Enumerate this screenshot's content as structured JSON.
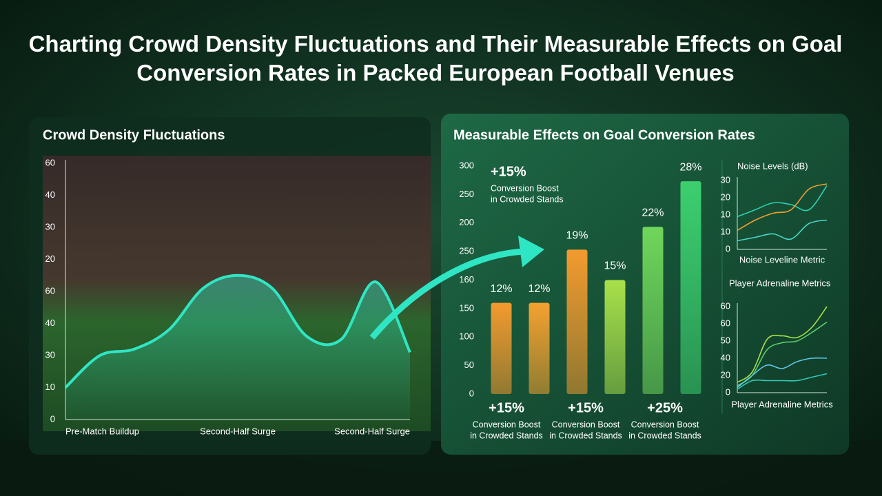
{
  "title": "Charting Crowd Density Fluctuations and Their Measurable Effects on Goal Conversion Rates in Packed European Football Venues",
  "chart_data": [
    {
      "type": "line",
      "title": "Crowd Density Fluctuations",
      "categories": [
        "Pre-Match Buildup",
        null,
        null,
        null,
        null,
        "Second-Half Surge",
        null,
        null,
        null,
        null,
        "Second-Half Surge"
      ],
      "y_labels": [
        "60",
        "40",
        "30",
        "20",
        "60",
        "40",
        "30",
        "10",
        "0"
      ],
      "ylim": [
        0,
        80
      ],
      "series": [
        {
          "color": "#2fe6c4",
          "values": [
            10,
            20,
            22,
            28,
            41,
            45,
            41,
            26,
            25,
            43,
            21
          ]
        }
      ]
    },
    {
      "type": "bar",
      "title": "Measurable Effects on Goal Conversion Rates",
      "y_labels": [
        "300",
        "250",
        "200",
        "250",
        "160",
        "150",
        "100",
        "50",
        "0"
      ],
      "ylim": [
        0,
        30
      ],
      "values": [
        12,
        12,
        19,
        15,
        22,
        28
      ],
      "value_labels": [
        "12%",
        "12%",
        "19%",
        "15%",
        "22%",
        "28%"
      ],
      "colors": [
        "#f39a2e",
        "#f4a12f",
        "#f39a2e",
        "#a8e04a",
        "#6fd65a",
        "#3ccf6e"
      ],
      "annotations": [
        {
          "value": "+15%",
          "text": [
            "Conversion Boost",
            "in Crowded Stands"
          ]
        },
        {
          "value": "+15%",
          "text": [
            "Conversion Boost",
            "in Crowded Stands"
          ]
        },
        {
          "value": "+15%",
          "text": [
            "Conversion Boost",
            "in Crowded Stands"
          ]
        },
        {
          "value": "+25%",
          "text": [
            "Conversion Boost",
            "in Crowded Stands"
          ]
        }
      ]
    },
    {
      "type": "line",
      "title": "Noise Levels (dB)",
      "xlabel": "Noise Leveline Metric",
      "y_labels": [
        "30",
        "20",
        "10",
        "10",
        "0"
      ],
      "ylim": [
        0,
        40
      ],
      "series": [
        {
          "color": "#2fd3b0",
          "values": [
            19,
            23,
            27,
            26,
            23,
            37
          ]
        },
        {
          "color": "#f3a030",
          "values": [
            11,
            17,
            21,
            23,
            35,
            38
          ]
        },
        {
          "color": "#48d8c8",
          "values": [
            5,
            7,
            9,
            6,
            15,
            17
          ]
        }
      ]
    },
    {
      "type": "line",
      "title": "Player Adrenaline Metrics",
      "xlabel": "Player Adrenaline Metrics",
      "y_labels": [
        "60",
        "60",
        "50",
        "40",
        "20",
        "0"
      ],
      "ylim": [
        0,
        100
      ],
      "series": [
        {
          "color": "#a8e04a",
          "values": [
            12,
            24,
            62,
            66,
            64,
            76,
            100
          ]
        },
        {
          "color": "#5ccf6a",
          "values": [
            8,
            20,
            50,
            58,
            60,
            70,
            82
          ]
        },
        {
          "color": "#5fc8e8",
          "values": [
            6,
            20,
            32,
            28,
            36,
            40,
            40
          ]
        },
        {
          "color": "#35c9b8",
          "values": [
            4,
            14,
            14,
            14,
            14,
            18,
            22
          ]
        }
      ]
    }
  ]
}
